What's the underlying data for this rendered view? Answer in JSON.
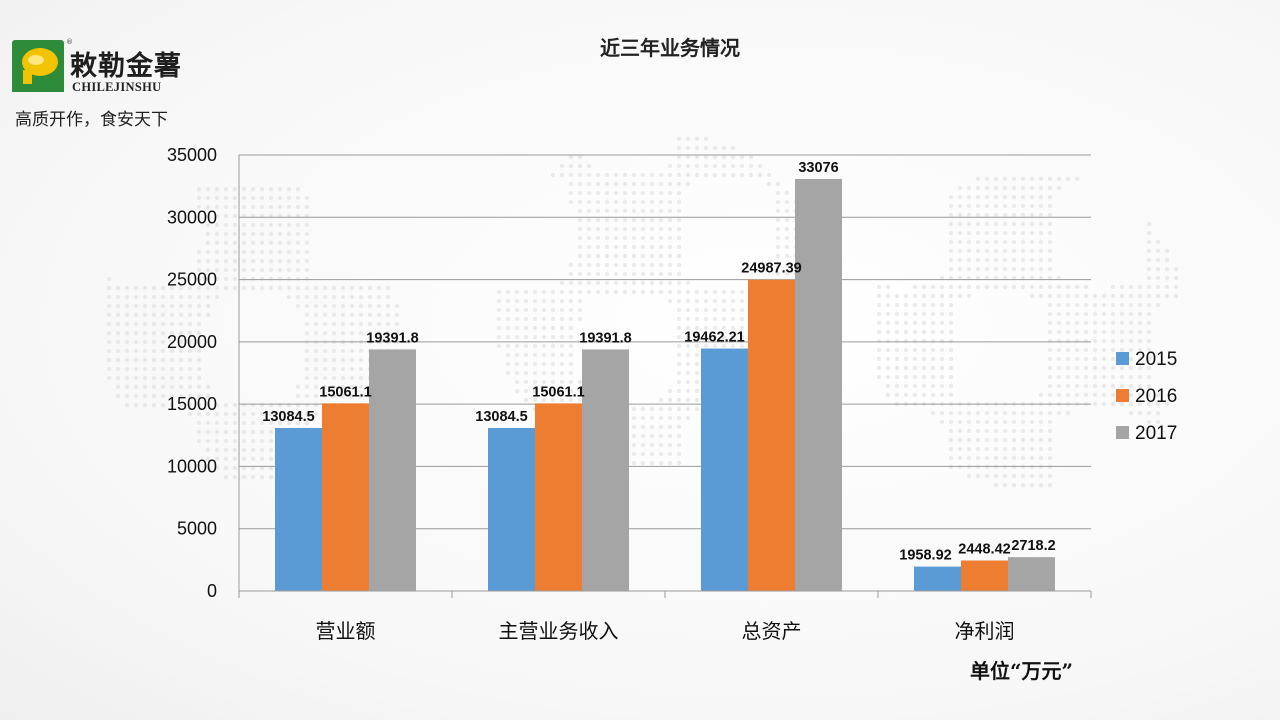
{
  "header": {
    "logo_name": "敕勒金薯",
    "logo_english": "CHILEJINSHU",
    "logo_registered": "®",
    "slogan": "高质开作，食安天下"
  },
  "colors": {
    "series_2015": "#5b9bd5",
    "series_2016": "#ed7d31",
    "series_2017": "#a5a5a5",
    "logo_green": "#2e8b3a",
    "logo_yellow": "#f2c400"
  },
  "chart_data": {
    "type": "bar",
    "title": "近三年业务情况",
    "categories": [
      "营业额",
      "主营业务收入",
      "总资产",
      "净利润"
    ],
    "series": [
      {
        "name": "2015",
        "values": [
          13084.5,
          13084.5,
          19462.21,
          1958.92
        ],
        "labels": [
          "13084.5",
          "13084.5",
          "19462.21",
          "1958.92"
        ]
      },
      {
        "name": "2016",
        "values": [
          15061.1,
          15061.1,
          24987.39,
          2448.42
        ],
        "labels": [
          "15061.1",
          "15061.1",
          "24987.39",
          "2448.42"
        ]
      },
      {
        "name": "2017",
        "values": [
          19391.8,
          19391.8,
          33076,
          2718.2
        ],
        "labels": [
          "19391.8",
          "19391.8",
          "33076",
          "2718.2"
        ]
      }
    ],
    "ylim": [
      0,
      35000
    ],
    "yticks": [
      "0",
      "5000",
      "10000",
      "15000",
      "20000",
      "25000",
      "30000",
      "35000"
    ],
    "grid": true,
    "legend": "right",
    "unit_note": "单位“万元”"
  }
}
